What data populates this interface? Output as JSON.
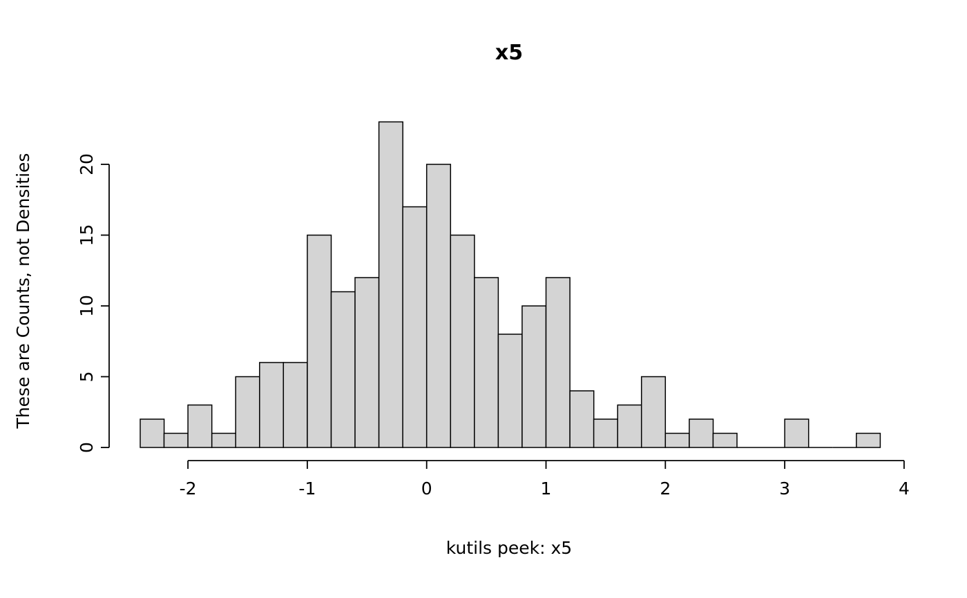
{
  "chart_data": {
    "type": "bar",
    "subtype": "histogram",
    "title": "x5",
    "xlabel": "kutils peek: x5",
    "ylabel": "These are Counts, not Densities",
    "bin_start": -2.4,
    "bin_width": 0.2,
    "counts": [
      2,
      1,
      3,
      1,
      5,
      6,
      6,
      15,
      11,
      12,
      23,
      17,
      20,
      15,
      12,
      8,
      10,
      12,
      4,
      2,
      3,
      5,
      1,
      2,
      1,
      0,
      0,
      2,
      0,
      0,
      1
    ],
    "x_ticks": [
      -2,
      -1,
      0,
      1,
      2,
      3,
      4
    ],
    "y_ticks": [
      0,
      5,
      10,
      15,
      20
    ],
    "xlim": [
      -2.4,
      3.8
    ],
    "ylim": [
      0,
      23
    ],
    "axis_x_range": [
      -2,
      4
    ],
    "axis_y_range": [
      0,
      20
    ],
    "total_count": 200,
    "grid": "off",
    "legend": "none",
    "bar_fill": "#d4d4d4",
    "bar_stroke": "#000000",
    "background": "#ffffff"
  }
}
